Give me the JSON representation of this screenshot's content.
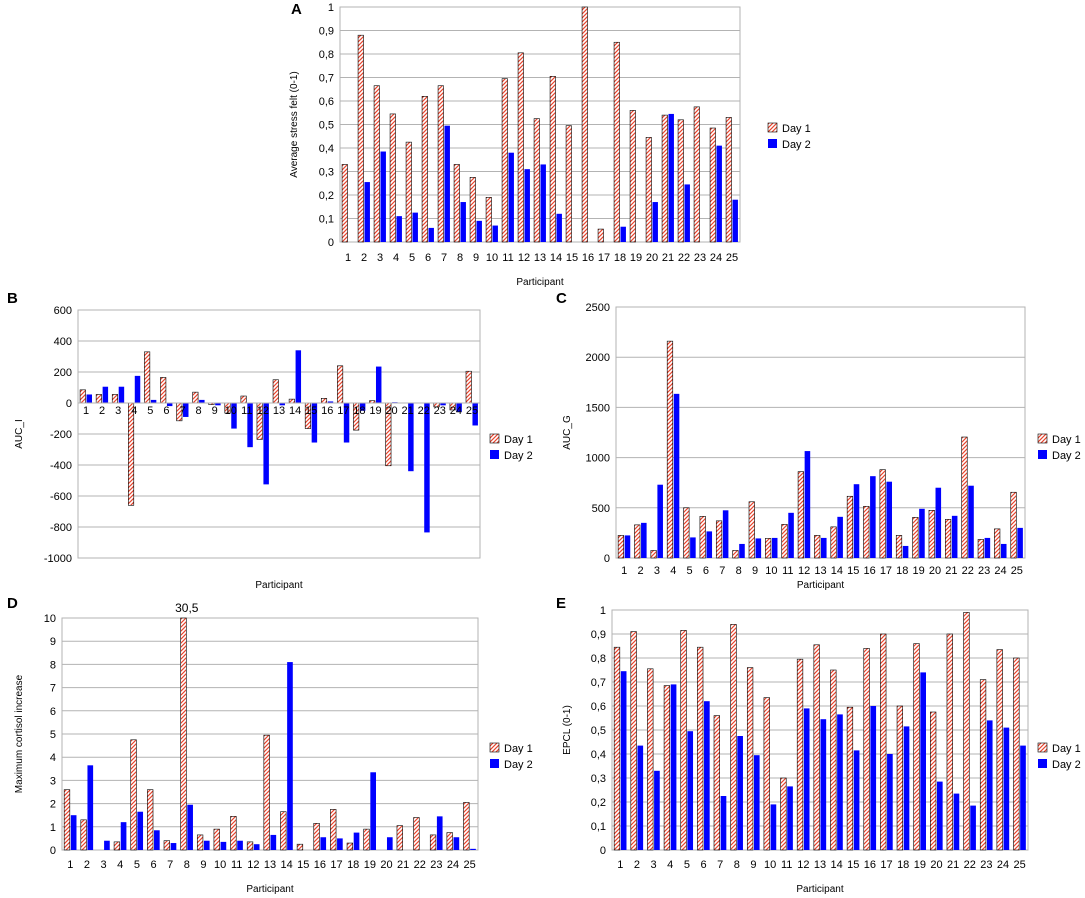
{
  "colors": {
    "day1_fill": "#ffffff",
    "day1_hatch": "#e8452e",
    "day1_edge": "#000000",
    "day2": "#0000ff",
    "grid": "#b3b3b3",
    "frame": "#b3b3b3",
    "zero_line": "#b3b3b3"
  },
  "chart_data": [
    {
      "id": "A",
      "panel_label": "A",
      "type": "bar",
      "title": "",
      "xlabel": "Participant",
      "ylabel": "Average stress felt (0-1)",
      "categories": [
        "1",
        "2",
        "3",
        "4",
        "5",
        "6",
        "7",
        "8",
        "9",
        "10",
        "11",
        "12",
        "13",
        "14",
        "15",
        "16",
        "17",
        "18",
        "19",
        "20",
        "21",
        "22",
        "23",
        "24",
        "25"
      ],
      "ylim": [
        0,
        1
      ],
      "yticks": [
        0,
        0.1,
        0.2,
        0.3,
        0.4,
        0.5,
        0.6,
        0.7,
        0.8,
        0.9,
        1
      ],
      "ytick_labels": [
        "0",
        "0,1",
        "0,2",
        "0,3",
        "0,4",
        "0,5",
        "0,6",
        "0,7",
        "0,8",
        "0,9",
        "1"
      ],
      "xtick_position": "bottom",
      "legend": "right",
      "grid": true,
      "series": [
        {
          "name": "Day 1",
          "values": [
            0.33,
            0.88,
            0.665,
            0.545,
            0.425,
            0.62,
            0.665,
            0.33,
            0.275,
            0.19,
            0.695,
            0.805,
            0.525,
            0.705,
            0.495,
            1.0,
            0.055,
            0.85,
            0.56,
            0.445,
            0.54,
            0.52,
            0.575,
            0.485,
            0.53
          ]
        },
        {
          "name": "Day 2",
          "values": [
            0,
            0.255,
            0.385,
            0.11,
            0.125,
            0.06,
            0.495,
            0.17,
            0.09,
            0.07,
            0.38,
            0.31,
            0.33,
            0.12,
            0,
            0,
            0,
            0.065,
            0,
            0.17,
            0.545,
            0.245,
            0,
            0.41,
            0.18
          ]
        }
      ]
    },
    {
      "id": "B",
      "panel_label": "B",
      "type": "bar",
      "title": "",
      "xlabel": "Participant",
      "ylabel": "AUC_I",
      "categories": [
        "1",
        "2",
        "3",
        "4",
        "5",
        "6",
        "7",
        "8",
        "9",
        "10",
        "11",
        "12",
        "13",
        "14",
        "15",
        "16",
        "17",
        "18",
        "19",
        "20",
        "21",
        "22",
        "23",
        "24",
        "25"
      ],
      "ylim": [
        -1000,
        600
      ],
      "yticks": [
        -1000,
        -800,
        -600,
        -400,
        -200,
        0,
        200,
        400,
        600
      ],
      "ytick_labels": [
        "-1000",
        "-800",
        "-600",
        "-400",
        "-200",
        "0",
        "200",
        "400",
        "600"
      ],
      "xtick_position": "zero",
      "legend": "right",
      "grid": true,
      "series": [
        {
          "name": "Day 1",
          "values": [
            85,
            55,
            55,
            -660,
            330,
            165,
            -115,
            70,
            -10,
            -65,
            45,
            -235,
            150,
            25,
            -165,
            30,
            240,
            -175,
            15,
            -405,
            0,
            0,
            -25,
            -45,
            205
          ]
        },
        {
          "name": "Day 2",
          "values": [
            55,
            105,
            105,
            175,
            20,
            -20,
            -90,
            20,
            -15,
            -165,
            -285,
            -525,
            -15,
            340,
            -255,
            10,
            -255,
            -50,
            235,
            5,
            -440,
            -835,
            -15,
            -55,
            -145
          ]
        }
      ]
    },
    {
      "id": "C",
      "panel_label": "C",
      "type": "bar",
      "title": "",
      "xlabel": "Participant",
      "ylabel": "AUC_G",
      "categories": [
        "1",
        "2",
        "3",
        "4",
        "5",
        "6",
        "7",
        "8",
        "9",
        "10",
        "11",
        "12",
        "13",
        "14",
        "15",
        "16",
        "17",
        "18",
        "19",
        "20",
        "21",
        "22",
        "23",
        "24",
        "25"
      ],
      "ylim": [
        0,
        2500
      ],
      "yticks": [
        0,
        500,
        1000,
        1500,
        2000,
        2500
      ],
      "ytick_labels": [
        "0",
        "500",
        "1000",
        "1500",
        "2000",
        "2500"
      ],
      "xtick_position": "bottom",
      "legend": "right",
      "grid": true,
      "series": [
        {
          "name": "Day 1",
          "values": [
            225,
            330,
            75,
            2160,
            500,
            415,
            370,
            75,
            560,
            195,
            335,
            860,
            225,
            310,
            615,
            515,
            880,
            225,
            405,
            475,
            385,
            1205,
            185,
            290,
            655
          ]
        },
        {
          "name": "Day 2",
          "values": [
            225,
            350,
            730,
            1635,
            205,
            265,
            475,
            140,
            195,
            200,
            450,
            1065,
            200,
            410,
            735,
            815,
            760,
            120,
            490,
            700,
            420,
            720,
            200,
            140,
            300
          ]
        }
      ]
    },
    {
      "id": "D",
      "panel_label": "D",
      "type": "bar",
      "title": "",
      "xlabel": "Participant",
      "ylabel": "Maximum cortisol increase",
      "categories": [
        "1",
        "2",
        "3",
        "4",
        "5",
        "6",
        "7",
        "8",
        "9",
        "10",
        "11",
        "12",
        "13",
        "14",
        "15",
        "16",
        "17",
        "18",
        "19",
        "20",
        "21",
        "22",
        "23",
        "24",
        "25"
      ],
      "ylim": [
        0,
        10
      ],
      "yticks": [
        0,
        1,
        2,
        3,
        4,
        5,
        6,
        7,
        8,
        9,
        10
      ],
      "ytick_labels": [
        "0",
        "1",
        "2",
        "3",
        "4",
        "5",
        "6",
        "7",
        "8",
        "9",
        "10"
      ],
      "xtick_position": "bottom",
      "legend": "right",
      "grid": true,
      "annotations": [
        {
          "text": "30,5",
          "category": "8"
        }
      ],
      "series": [
        {
          "name": "Day 1",
          "values": [
            2.6,
            1.3,
            0,
            0.35,
            4.75,
            2.6,
            0.4,
            10,
            0.65,
            0.9,
            1.45,
            0.35,
            4.95,
            1.65,
            0.25,
            1.15,
            1.75,
            0.3,
            0.9,
            0,
            1.05,
            1.4,
            0.65,
            0.75,
            2.05
          ]
        },
        {
          "name": "Day 2",
          "values": [
            1.5,
            3.65,
            0.4,
            1.2,
            1.65,
            0.85,
            0.3,
            1.95,
            0.4,
            0.35,
            0.4,
            0.25,
            0.65,
            8.1,
            0,
            0.55,
            0.5,
            0.75,
            3.35,
            0.55,
            0,
            0,
            1.45,
            0.55,
            0.05
          ]
        }
      ]
    },
    {
      "id": "E",
      "panel_label": "E",
      "type": "bar",
      "title": "",
      "xlabel": "Participant",
      "ylabel": "EPCL (0-1)",
      "categories": [
        "1",
        "2",
        "3",
        "4",
        "5",
        "6",
        "7",
        "8",
        "9",
        "10",
        "11",
        "12",
        "13",
        "14",
        "15",
        "16",
        "17",
        "18",
        "19",
        "20",
        "21",
        "22",
        "23",
        "24",
        "25"
      ],
      "ylim": [
        0,
        1
      ],
      "yticks": [
        0,
        0.1,
        0.2,
        0.3,
        0.4,
        0.5,
        0.6,
        0.7,
        0.8,
        0.9,
        1
      ],
      "ytick_labels": [
        "0",
        "0,1",
        "0,2",
        "0,3",
        "0,4",
        "0,5",
        "0,6",
        "0,7",
        "0,8",
        "0,9",
        "1"
      ],
      "xtick_position": "bottom",
      "legend": "right",
      "grid": true,
      "series": [
        {
          "name": "Day 1",
          "values": [
            0.845,
            0.91,
            0.755,
            0.685,
            0.915,
            0.845,
            0.56,
            0.94,
            0.76,
            0.635,
            0.3,
            0.795,
            0.855,
            0.75,
            0.595,
            0.84,
            0.9,
            0.6,
            0.86,
            0.575,
            0.9,
            0.99,
            0.71,
            0.835,
            0.8
          ]
        },
        {
          "name": "Day 2",
          "values": [
            0.745,
            0.435,
            0.33,
            0.69,
            0.495,
            0.62,
            0.225,
            0.475,
            0.395,
            0.19,
            0.265,
            0.59,
            0.545,
            0.565,
            0.415,
            0.6,
            0.4,
            0.515,
            0.74,
            0.285,
            0.235,
            0.185,
            0.54,
            0.51,
            0.435
          ]
        }
      ]
    }
  ]
}
